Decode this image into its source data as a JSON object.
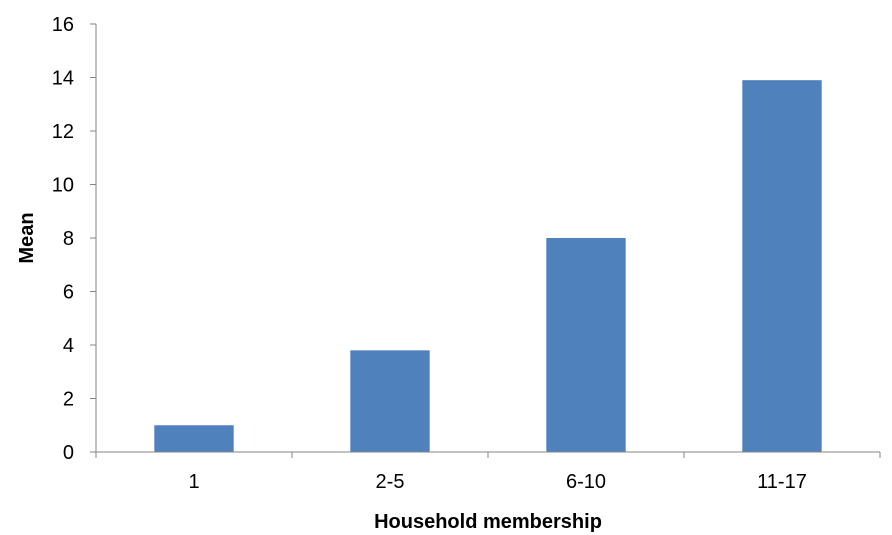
{
  "chart_data": {
    "type": "bar",
    "categories": [
      "1",
      "2-5",
      "6-10",
      "11-17"
    ],
    "values": [
      1.0,
      3.8,
      8.0,
      13.9
    ],
    "xlabel": "Household membership",
    "ylabel": "Mean",
    "ylim": [
      0,
      16
    ],
    "yticks": [
      "0",
      "2",
      "4",
      "6",
      "8",
      "10",
      "12",
      "14",
      "16"
    ],
    "grid": false,
    "legend": "none",
    "bar_color": "#4F81BD",
    "axis_color": "#868686"
  }
}
